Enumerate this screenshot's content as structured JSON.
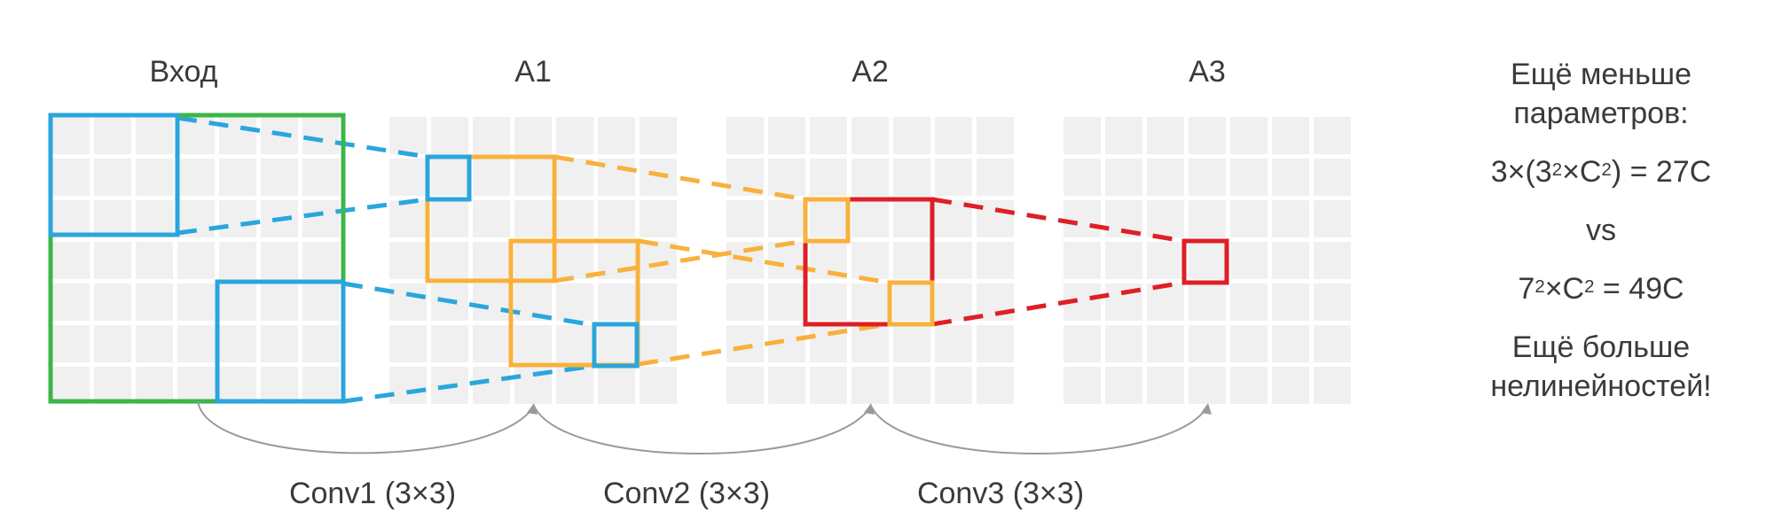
{
  "labels": {
    "input": "Вход",
    "a1": "A1",
    "a2": "A2",
    "a3": "A3",
    "conv1": "Conv1 (3×3)",
    "conv2": "Conv2 (3×3)",
    "conv3": "Conv3 (3×3)"
  },
  "side": {
    "line1": "Ещё меньше",
    "line2": "параметров:",
    "formula1_a": "3×(3",
    "formula1_sup1": "2",
    "formula1_b": "×C",
    "formula1_sup2": "2",
    "formula1_c": ") = 27C",
    "vs": "vs",
    "formula2_a": "7",
    "formula2_sup1": "2",
    "formula2_b": "×C",
    "formula2_sup2": "2",
    "formula2_c": " = 49C",
    "line5": "Ещё больше",
    "line6": "нелинейностей!"
  },
  "colors": {
    "green": "#3db54a",
    "blue": "#2aa6dc",
    "orange": "#f8b13c",
    "red": "#de1f26",
    "grid": "#f0f0f0",
    "arrow": "#9a9a9a"
  }
}
